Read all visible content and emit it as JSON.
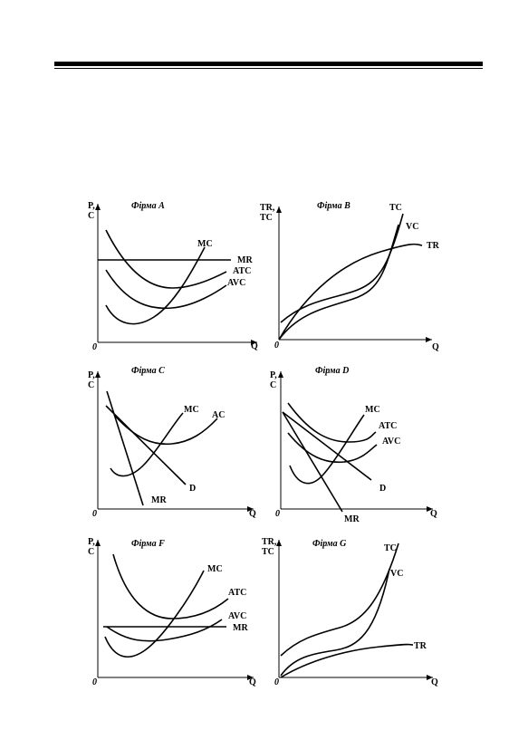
{
  "panels": [
    {
      "title": "Фірма A",
      "y_axis_label": [
        "P,",
        "C"
      ],
      "origin_label": "0",
      "x_axis_label": "Q",
      "curve_labels": [
        "MC",
        "MR",
        "ATC",
        "AVC"
      ]
    },
    {
      "title": "Фірма B",
      "y_axis_label": [
        "TR,",
        "TC"
      ],
      "origin_label": "0",
      "x_axis_label": "Q",
      "curve_labels": [
        "TC",
        "VC",
        "TR"
      ]
    },
    {
      "title": "Фірма C",
      "y_axis_label": [
        "P,",
        "C"
      ],
      "origin_label": "0",
      "x_axis_label": "Q",
      "curve_labels": [
        "MC",
        "AC",
        "D",
        "MR"
      ]
    },
    {
      "title": "Фірма D",
      "y_axis_label": [
        "P,",
        "C"
      ],
      "origin_label": "0",
      "x_axis_label": "Q",
      "curve_labels": [
        "MC",
        "ATC",
        "AVC",
        "D",
        "MR"
      ]
    },
    {
      "title": "Фірма F",
      "y_axis_label": [
        "P,",
        "C"
      ],
      "origin_label": "0",
      "x_axis_label": "Q",
      "curve_labels": [
        "MC",
        "ATC",
        "AVC",
        "MR"
      ]
    },
    {
      "title": "Фірма G",
      "y_axis_label": [
        "TR,",
        "TC"
      ],
      "origin_label": "0",
      "x_axis_label": "Q",
      "curve_labels": [
        "TC",
        "VC",
        "TR"
      ]
    }
  ]
}
